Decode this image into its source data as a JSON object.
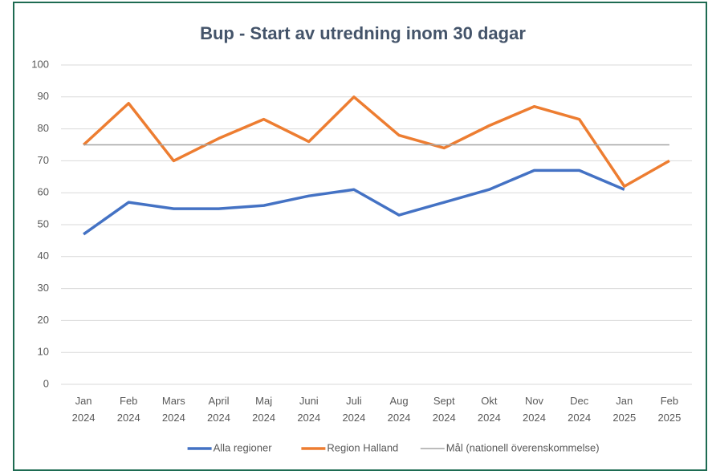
{
  "chart_data": {
    "type": "line",
    "title": "Bup - Start av utredning inom 30 dagar",
    "categories": [
      "Jan 2024",
      "Feb 2024",
      "Mars 2024",
      "April 2024",
      "Maj 2024",
      "Juni 2024",
      "Juli 2024",
      "Aug 2024",
      "Sept 2024",
      "Okt 2024",
      "Nov 2024",
      "Dec 2024",
      "Jan 2025",
      "Feb 2025"
    ],
    "series": [
      {
        "name": "Alla regioner",
        "color": "#4472c4",
        "values": [
          47,
          57,
          55,
          55,
          56,
          59,
          61,
          53,
          57,
          61,
          67,
          67,
          61,
          null
        ]
      },
      {
        "name": "Region Halland",
        "color": "#ed7d31",
        "values": [
          75,
          88,
          70,
          77,
          83,
          76,
          90,
          78,
          74,
          81,
          87,
          83,
          62,
          70
        ]
      },
      {
        "name": "Mål (nationell överenskommelse)",
        "color": "#a5a5a5",
        "values": [
          75,
          75,
          75,
          75,
          75,
          75,
          75,
          75,
          75,
          75,
          75,
          75,
          75,
          75
        ]
      }
    ],
    "ylim": [
      0,
      100
    ],
    "yticks": [
      0,
      10,
      20,
      30,
      40,
      50,
      60,
      70,
      80,
      90,
      100
    ],
    "grid": true,
    "legend": "bottom"
  }
}
